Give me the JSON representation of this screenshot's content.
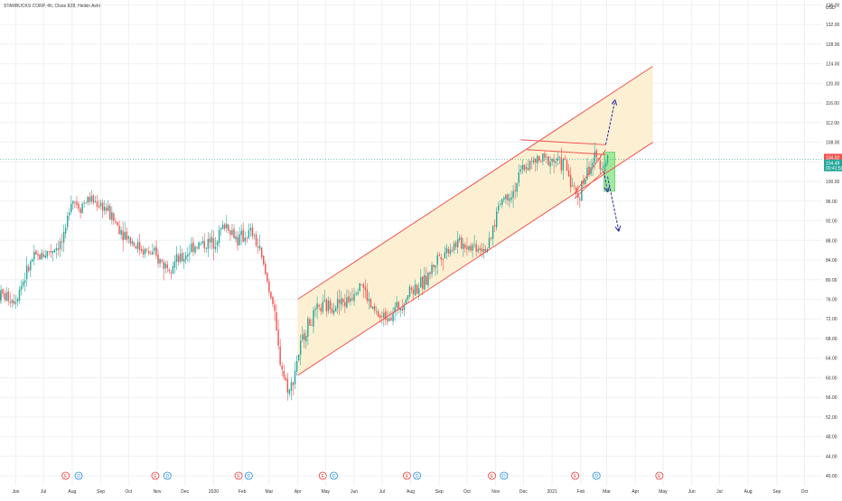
{
  "chart_data": {
    "type": "candlestick",
    "header": "STARBUCKS CORP, 4h, Close 8Z8, Heikin Ashi",
    "y_axis": {
      "ticks": [
        40.0,
        44.0,
        48.0,
        52.0,
        56.0,
        60.0,
        64.0,
        68.0,
        72.0,
        76.0,
        80.0,
        84.0,
        88.0,
        92.0,
        96.0,
        100.0,
        104.0,
        108.0,
        112.0,
        116.0,
        120.0,
        124.0,
        128.0,
        132.0,
        136.0
      ],
      "top_label": "136.00",
      "unit": "USD",
      "range": [
        38,
        137
      ]
    },
    "x_axis": {
      "ticks": [
        "Jun",
        "Jul",
        "Aug",
        "Sep",
        "Oct",
        "Nov",
        "Dec",
        "2020",
        "Feb",
        "Mar",
        "Apr",
        "May",
        "Jun",
        "Jul",
        "Aug",
        "Sep",
        "Oct",
        "Nov",
        "Dec",
        "2021",
        "Feb",
        "Mar",
        "Apr",
        "May",
        "Jun",
        "Jul",
        "Aug",
        "Sep",
        "Oct"
      ],
      "start": "2019-05-15",
      "end": "2021-10-20"
    },
    "price_labels": {
      "high_marker": "104.92",
      "last_price": "104.48",
      "countdown": "00:41:58"
    },
    "series": [
      {
        "x": [
          "2019-05-15",
          "2019-06-01",
          "2019-06-20",
          "2019-07-10",
          "2019-07-25",
          "2019-07-31",
          "2019-08-10",
          "2019-08-20",
          "2019-09-05",
          "2019-09-20",
          "2019-10-10",
          "2019-10-28",
          "2019-11-10",
          "2019-11-28",
          "2019-12-10",
          "2019-12-31",
          "2020-01-15",
          "2020-01-28",
          "2020-02-05",
          "2020-02-12",
          "2020-02-20",
          "2020-02-28",
          "2020-03-05",
          "2020-03-12",
          "2020-03-18",
          "2020-03-24",
          "2020-04-01",
          "2020-04-10",
          "2020-04-25",
          "2020-05-10",
          "2020-05-25",
          "2020-06-08",
          "2020-06-20",
          "2020-07-01",
          "2020-07-20",
          "2020-08-01",
          "2020-08-15",
          "2020-09-01",
          "2020-09-20",
          "2020-10-05",
          "2020-10-25",
          "2020-11-05",
          "2020-11-20",
          "2020-12-01",
          "2020-12-15",
          "2020-12-31",
          "2021-01-15",
          "2021-01-28",
          "2021-02-05",
          "2021-02-15",
          "2021-02-25",
          "2021-03-02"
        ],
        "y": [
          77,
          76,
          84,
          86,
          88,
          97,
          95,
          96.5,
          95,
          91,
          87,
          85,
          83,
          84,
          87,
          87.5,
          91.5,
          88,
          89,
          89.5,
          86,
          80,
          76,
          65,
          60,
          57,
          64,
          70,
          74,
          75,
          75.5,
          80,
          74,
          72,
          74.5,
          78,
          79,
          85,
          87.5,
          87,
          86.5,
          96,
          98,
          103,
          104,
          104.5,
          103.5,
          96.5,
          100.5,
          104.5,
          103.5,
          104.48
        ]
      }
    ],
    "annotations": {
      "channel": {
        "upper": [
          [
            "2020-04-01",
            76
          ],
          [
            "2021-04-20",
            123.5
          ]
        ],
        "lower": [
          [
            "2020-04-01",
            60.5
          ],
          [
            "2021-04-20",
            108
          ]
        ]
      },
      "resistance_lines": [
        [
          [
            "2020-11-28",
            108.5
          ],
          [
            "2021-02-28",
            107.5
          ]
        ],
        [
          [
            "2020-12-05",
            106.5
          ],
          [
            "2021-02-28",
            105.5
          ]
        ]
      ],
      "wedge_lines": [
        [
          [
            "2021-01-25",
            97.5
          ],
          [
            "2021-02-28",
            106.5
          ]
        ],
        [
          [
            "2021-01-25",
            96.5
          ],
          [
            "2021-02-28",
            102.5
          ]
        ]
      ],
      "target_box": {
        "x0": "2021-02-26",
        "x1": "2021-03-10",
        "y0": 98,
        "y1": 106
      },
      "arrows": [
        [
          [
            "2021-02-28",
            107.5
          ],
          [
            "2021-03-10",
            116.5
          ]
        ],
        [
          [
            "2021-02-26",
            102
          ],
          [
            "2021-03-02",
            98
          ]
        ],
        [
          [
            "2021-03-02",
            101
          ],
          [
            "2021-03-14",
            90
          ]
        ]
      ],
      "markers": [
        {
          "date": "2019-07-25",
          "letter": "E",
          "color": "#e53935"
        },
        {
          "date": "2019-08-08",
          "letter": "D",
          "color": "#1e88e5"
        },
        {
          "date": "2019-10-30",
          "letter": "E",
          "color": "#e53935"
        },
        {
          "date": "2019-11-12",
          "letter": "D",
          "color": "#1e88e5"
        },
        {
          "date": "2020-01-28",
          "letter": "E",
          "color": "#e53935"
        },
        {
          "date": "2020-02-08",
          "letter": "D",
          "color": "#1e88e5"
        },
        {
          "date": "2020-04-28",
          "letter": "E",
          "color": "#e53935"
        },
        {
          "date": "2020-05-10",
          "letter": "D",
          "color": "#1e88e5"
        },
        {
          "date": "2020-07-28",
          "letter": "E",
          "color": "#e53935"
        },
        {
          "date": "2020-08-08",
          "letter": "D",
          "color": "#1e88e5"
        },
        {
          "date": "2020-10-28",
          "letter": "E",
          "color": "#e53935"
        },
        {
          "date": "2020-11-10",
          "letter": "D",
          "color": "#1e88e5"
        },
        {
          "date": "2021-01-26",
          "letter": "E",
          "color": "#e53935"
        },
        {
          "date": "2021-02-18",
          "letter": "D",
          "color": "#1e88e5"
        },
        {
          "date": "2021-04-27",
          "letter": "E",
          "color": "#e53935"
        }
      ]
    },
    "colors": {
      "up": "#26a69a",
      "down": "#ef5350",
      "channel_line": "#ef5350",
      "channel_fill": "#fdf0d2",
      "box_fill": "#8ee88e",
      "arrow": "#2b2ba8",
      "price_badge": "#26a69a",
      "high_badge": "#ef5350",
      "grid": "#eef0f3"
    }
  }
}
